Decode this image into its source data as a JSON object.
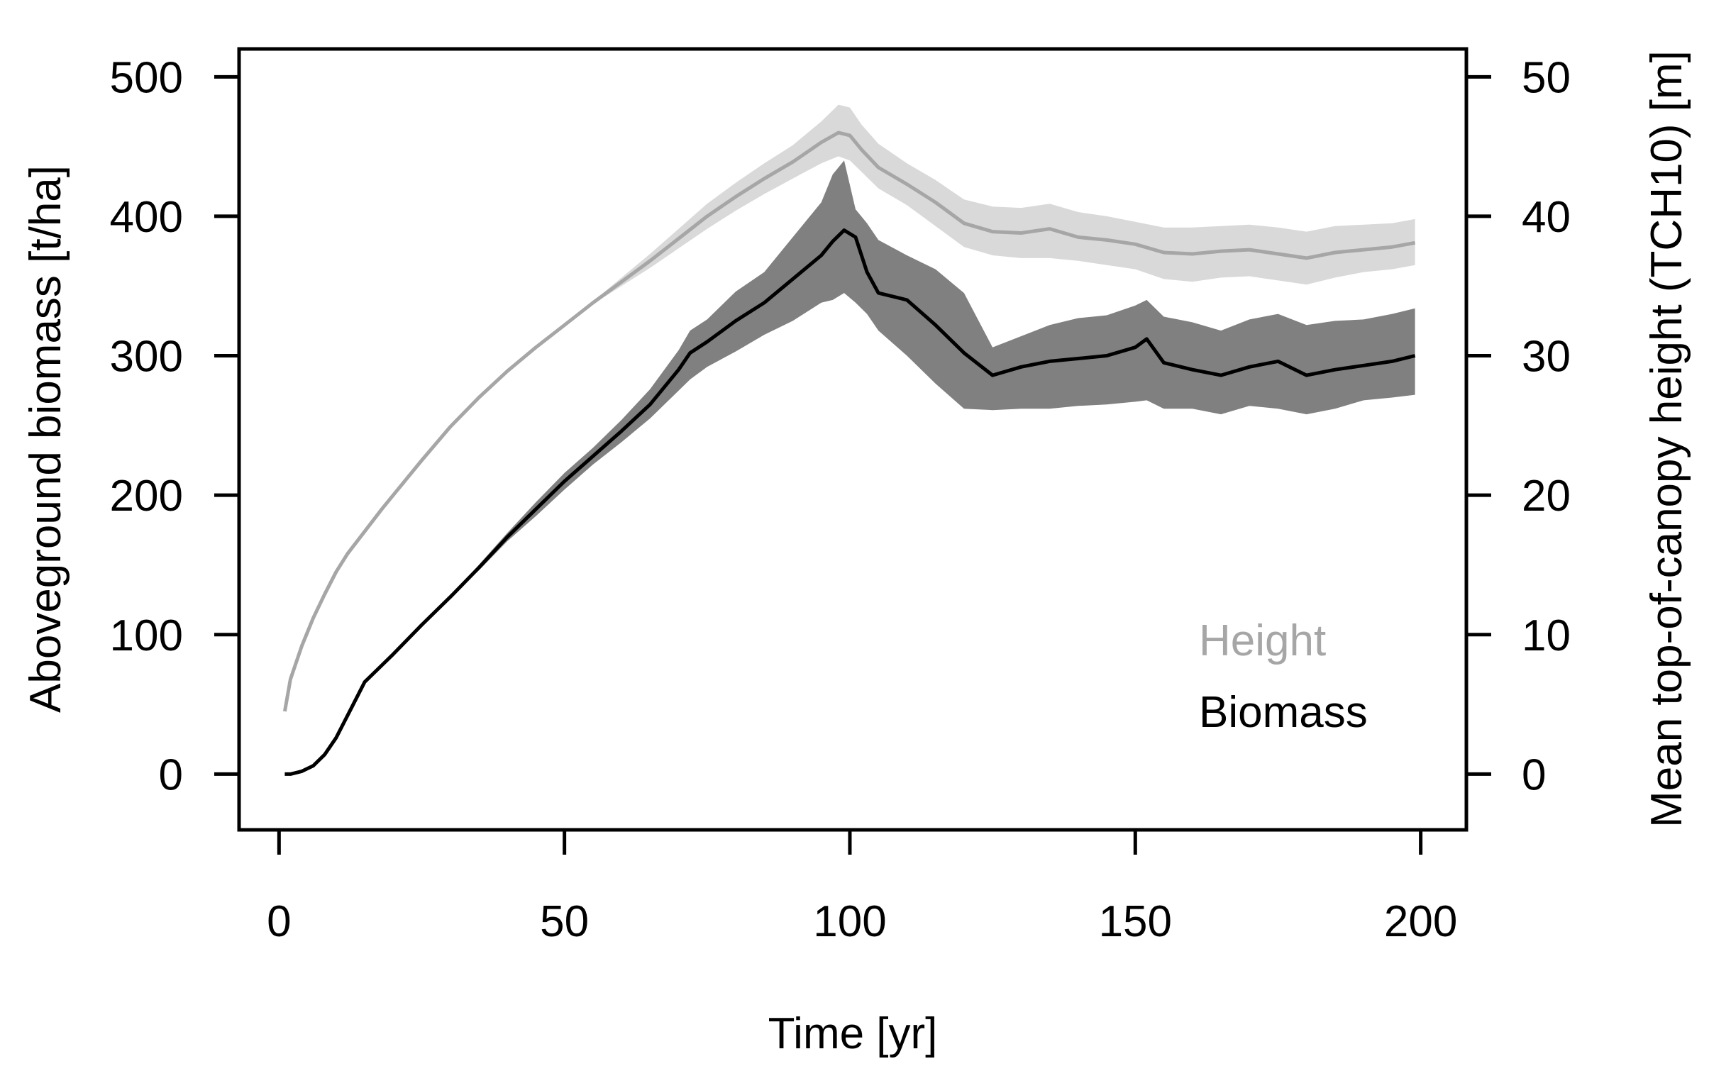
{
  "chart_data": {
    "type": "line",
    "title": "",
    "xlabel": "Time [yr]",
    "ylabel_left": "Aboveground biomass [t/ha]",
    "ylabel_right": "Mean top-of-canopy height (TCH10) [m]",
    "xlim": [
      -7,
      208
    ],
    "ylim_left": [
      -40,
      520
    ],
    "ylim_right": [
      -4,
      52
    ],
    "x_ticks": [
      0,
      50,
      100,
      150,
      200
    ],
    "x_tick_labels": [
      "0",
      "50",
      "100",
      "150",
      "200"
    ],
    "y_left_ticks": [
      0,
      100,
      200,
      300,
      400,
      500
    ],
    "y_left_tick_labels": [
      "0",
      "100",
      "200",
      "300",
      "400",
      "500"
    ],
    "y_right_ticks": [
      0,
      10,
      20,
      30,
      40,
      50
    ],
    "y_right_tick_labels": [
      "0",
      "10",
      "20",
      "30",
      "40",
      "50"
    ],
    "grid": false,
    "legend_position": "bottom-right",
    "colors": {
      "height_line": "#a6a6a6",
      "height_band": "#d9d9d9",
      "biomass_line": "#000000",
      "biomass_band": "#808080"
    },
    "series": [
      {
        "name": "Height",
        "axis": "right",
        "legend_label": "Height",
        "x": [
          1,
          2,
          4,
          6,
          8,
          10,
          12,
          15,
          18,
          20,
          25,
          30,
          35,
          40,
          45,
          50,
          55,
          60,
          65,
          70,
          75,
          80,
          85,
          90,
          95,
          98,
          100,
          102,
          105,
          110,
          115,
          120,
          125,
          130,
          135,
          140,
          145,
          150,
          155,
          160,
          165,
          170,
          175,
          180,
          185,
          190,
          195,
          199
        ],
        "values": [
          4.5,
          6.8,
          9.2,
          11.2,
          12.9,
          14.5,
          15.8,
          17.4,
          19.0,
          20.0,
          22.5,
          24.9,
          27.0,
          28.9,
          30.6,
          32.2,
          33.8,
          35.3,
          36.8,
          38.4,
          40.0,
          41.4,
          42.7,
          43.9,
          45.3,
          46.0,
          45.8,
          44.8,
          43.5,
          42.3,
          41.0,
          39.5,
          38.9,
          38.8,
          39.1,
          38.5,
          38.3,
          38.0,
          37.4,
          37.3,
          37.5,
          37.6,
          37.3,
          37.0,
          37.4,
          37.6,
          37.8,
          38.1
        ],
        "lower": [
          4.5,
          6.8,
          9.2,
          11.2,
          12.9,
          14.5,
          15.8,
          17.4,
          19.0,
          20.0,
          22.5,
          24.9,
          27.0,
          28.9,
          30.6,
          32.2,
          33.7,
          35.0,
          36.3,
          37.7,
          39.1,
          40.4,
          41.6,
          42.7,
          43.8,
          44.3,
          44.0,
          43.2,
          42.0,
          40.8,
          39.3,
          37.8,
          37.2,
          37.0,
          37.0,
          36.8,
          36.5,
          36.2,
          35.5,
          35.3,
          35.6,
          35.7,
          35.4,
          35.1,
          35.6,
          36.0,
          36.2,
          36.5
        ],
        "upper": [
          4.5,
          6.8,
          9.2,
          11.2,
          12.9,
          14.5,
          15.8,
          17.4,
          19.0,
          20.0,
          22.5,
          24.9,
          27.0,
          28.9,
          30.6,
          32.2,
          33.9,
          35.6,
          37.3,
          39.1,
          40.9,
          42.4,
          43.8,
          45.1,
          46.8,
          48.0,
          47.8,
          46.6,
          45.2,
          43.8,
          42.6,
          41.2,
          40.7,
          40.6,
          40.9,
          40.3,
          40.0,
          39.6,
          39.2,
          39.2,
          39.3,
          39.4,
          39.2,
          38.9,
          39.3,
          39.4,
          39.5,
          39.8
        ]
      },
      {
        "name": "Biomass",
        "axis": "left",
        "legend_label": "Biomass",
        "x": [
          1,
          2,
          4,
          6,
          8,
          10,
          12,
          14,
          15,
          18,
          20,
          25,
          30,
          35,
          40,
          45,
          50,
          55,
          60,
          65,
          70,
          72,
          75,
          80,
          85,
          90,
          95,
          97,
          99,
          101,
          103,
          105,
          110,
          115,
          120,
          125,
          130,
          135,
          140,
          145,
          150,
          152,
          155,
          160,
          165,
          170,
          175,
          180,
          185,
          190,
          195,
          199
        ],
        "values": [
          0,
          0,
          2,
          6,
          14,
          26,
          42,
          58,
          66,
          78,
          86,
          107,
          127,
          148,
          170,
          190,
          210,
          228,
          246,
          265,
          290,
          302,
          310,
          325,
          338,
          355,
          372,
          382,
          390,
          385,
          360,
          345,
          340,
          322,
          302,
          286,
          292,
          296,
          298,
          300,
          306,
          312,
          295,
          290,
          286,
          292,
          296,
          286,
          290,
          293,
          296,
          300
        ],
        "lower": [
          0,
          0,
          2,
          6,
          14,
          26,
          42,
          58,
          66,
          78,
          86,
          107,
          127,
          146,
          167,
          185,
          204,
          222,
          238,
          255,
          275,
          283,
          292,
          303,
          315,
          325,
          338,
          340,
          345,
          338,
          330,
          318,
          300,
          280,
          262,
          261,
          262,
          262,
          264,
          265,
          267,
          268,
          262,
          262,
          258,
          264,
          262,
          258,
          262,
          268,
          270,
          272
        ],
        "upper": [
          0,
          0,
          2,
          6,
          14,
          26,
          42,
          58,
          66,
          78,
          86,
          107,
          127,
          150,
          173,
          195,
          216,
          234,
          254,
          276,
          304,
          318,
          326,
          346,
          360,
          385,
          410,
          430,
          440,
          405,
          395,
          383,
          372,
          362,
          345,
          306,
          314,
          322,
          327,
          329,
          336,
          340,
          328,
          324,
          318,
          326,
          330,
          322,
          325,
          326,
          330,
          334
        ]
      }
    ]
  }
}
